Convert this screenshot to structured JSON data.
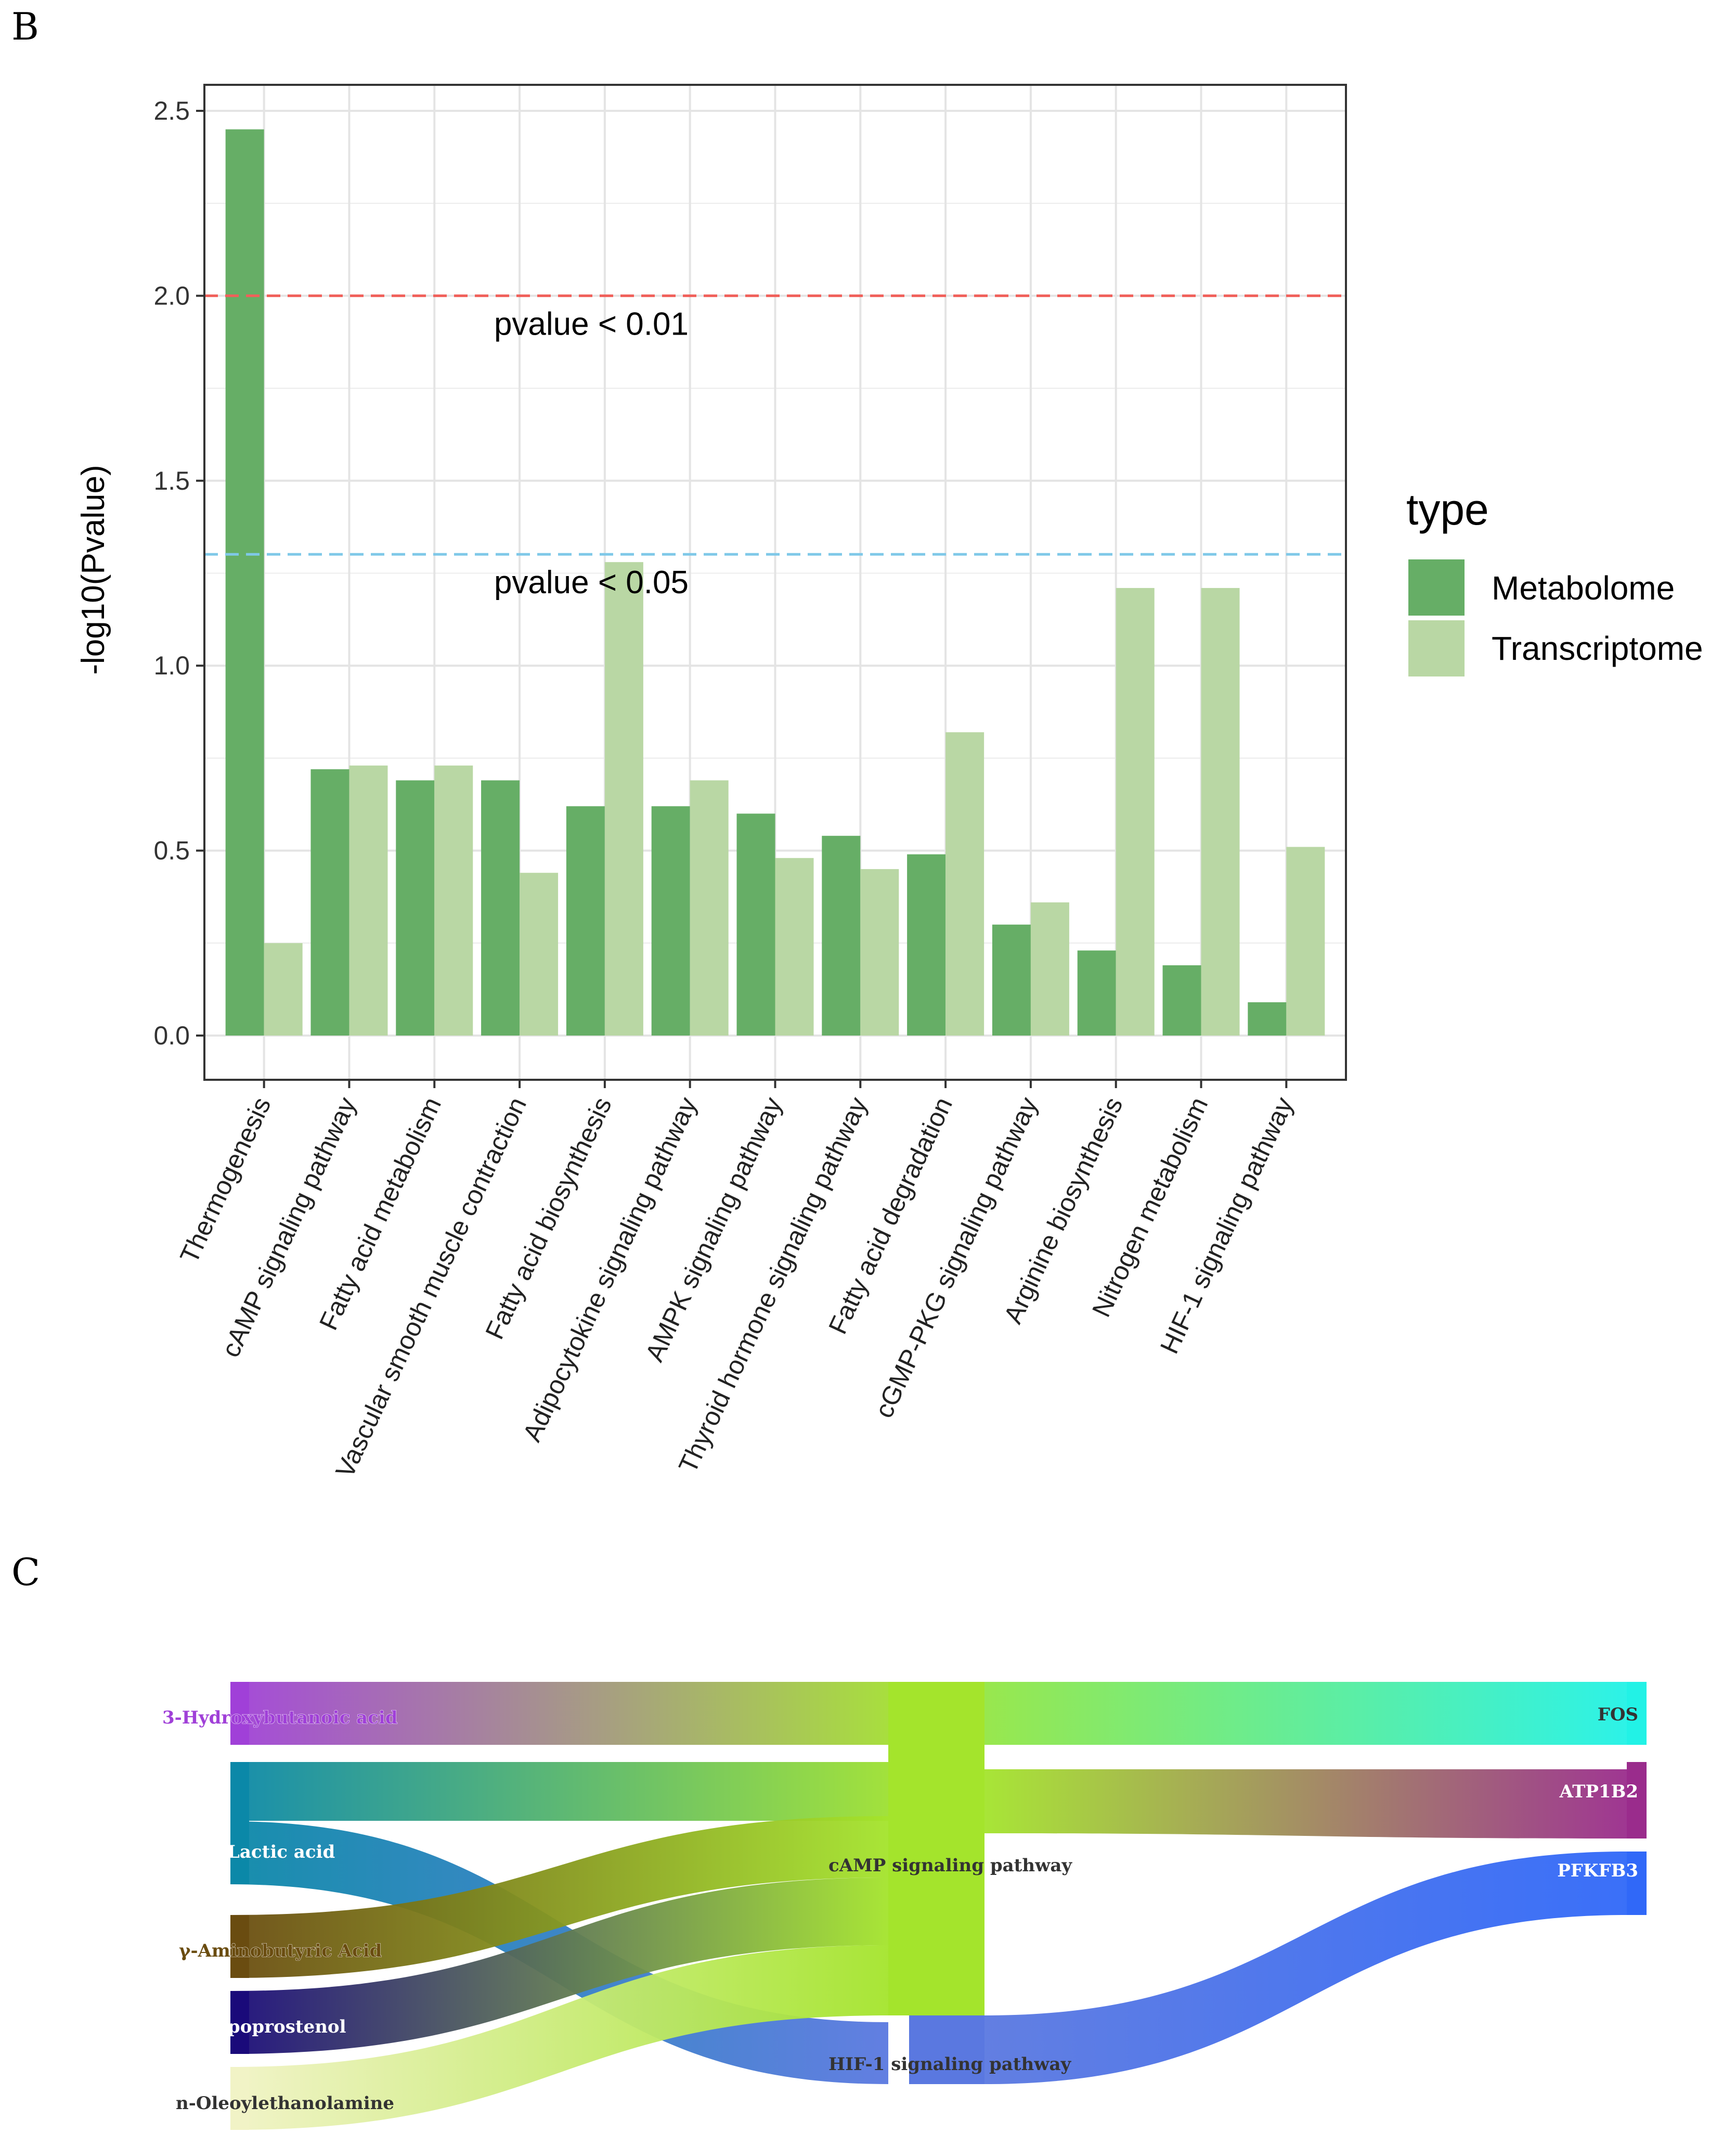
{
  "panel_labels": {
    "b": "B",
    "c": "C"
  },
  "chart_data": [
    {
      "type": "bar",
      "title": "",
      "xlabel": "",
      "ylabel": "-log10(Pvalue)",
      "ylim": [
        -0.1,
        2.6
      ],
      "yticks": [
        "0.0",
        "0.5",
        "1.0",
        "1.5",
        "2.0",
        "2.5"
      ],
      "categories": [
        "Thermogenesis",
        "cAMP signaling pathway",
        "Fatty acid metabolism",
        "Vascular smooth muscle contraction",
        "Fatty acid biosynthesis",
        "Adipocytokine signaling pathway",
        "AMPK signaling pathway",
        "Thyroid hormone signaling pathway",
        "Fatty acid degradation",
        "cGMP-PKG signaling pathway",
        "Arginine biosynthesis",
        "Nitrogen metabolism",
        "HIF-1 signaling pathway"
      ],
      "series": [
        {
          "name": "Metabolome",
          "color": "#66ae66",
          "values": [
            2.45,
            0.72,
            0.69,
            0.69,
            0.62,
            0.62,
            0.6,
            0.54,
            0.49,
            0.3,
            0.23,
            0.19,
            0.09
          ]
        },
        {
          "name": "Transcriptome",
          "color": "#b9d7a4",
          "values": [
            0.25,
            0.73,
            0.73,
            0.44,
            1.28,
            0.69,
            0.48,
            0.45,
            0.82,
            0.36,
            1.21,
            1.21,
            0.51
          ]
        }
      ],
      "hlines": [
        {
          "y": 2.0,
          "color": "#f0605a",
          "label": "pvalue < 0.01"
        },
        {
          "y": 1.301,
          "color": "#7fc8e8",
          "label": "pvalue < 0.05"
        }
      ],
      "legend": {
        "title": "type",
        "position": "right"
      },
      "grid": true
    },
    {
      "type": "sankey",
      "sources": [
        {
          "name": "3-Hydroxybutanoic acid",
          "color": "#a040d8",
          "label_color": "#a040d8"
        },
        {
          "name": "Lactic acid",
          "color": "#0b88a8",
          "label_color": "#ffffff"
        },
        {
          "name": "γ-Aminobutyric Acid",
          "color": "#6a4c10",
          "label_color": "#6a4c10"
        },
        {
          "name": "Epoprostenol",
          "color": "#1a0a7a",
          "label_color": "#ffffff"
        },
        {
          "name": "n-Oleoylethanolamine",
          "color": "#f1f3c6",
          "label_color": "#333333"
        }
      ],
      "pathways": [
        {
          "name": "cAMP signaling pathway",
          "color": "#a4e42c",
          "label_color": "#333333"
        },
        {
          "name": "HIF-1 signaling pathway",
          "color": "#5a78e0",
          "label_color": "#333333"
        }
      ],
      "targets": [
        {
          "name": "FOS",
          "color": "#22f2e6",
          "label_color": "#333333"
        },
        {
          "name": "ATP1B2",
          "color": "#9a2c8c",
          "label_color": "#ffffff"
        },
        {
          "name": "PFKFB3",
          "color": "#3068f8",
          "label_color": "#ffffff"
        }
      ],
      "links": [
        {
          "from": "3-Hydroxybutanoic acid",
          "to": "cAMP signaling pathway",
          "value": 1
        },
        {
          "from": "Lactic acid",
          "to": "cAMP signaling pathway",
          "value": 1
        },
        {
          "from": "Lactic acid",
          "to": "HIF-1 signaling pathway",
          "value": 1
        },
        {
          "from": "γ-Aminobutyric Acid",
          "to": "cAMP signaling pathway",
          "value": 1
        },
        {
          "from": "Epoprostenol",
          "to": "cAMP signaling pathway",
          "value": 1
        },
        {
          "from": "n-Oleoylethanolamine",
          "to": "cAMP signaling pathway",
          "value": 1
        },
        {
          "from": "cAMP signaling pathway",
          "to": "FOS",
          "value": 1
        },
        {
          "from": "cAMP signaling pathway",
          "to": "ATP1B2",
          "value": 1
        },
        {
          "from": "HIF-1 signaling pathway",
          "to": "PFKFB3",
          "value": 1
        }
      ]
    }
  ]
}
